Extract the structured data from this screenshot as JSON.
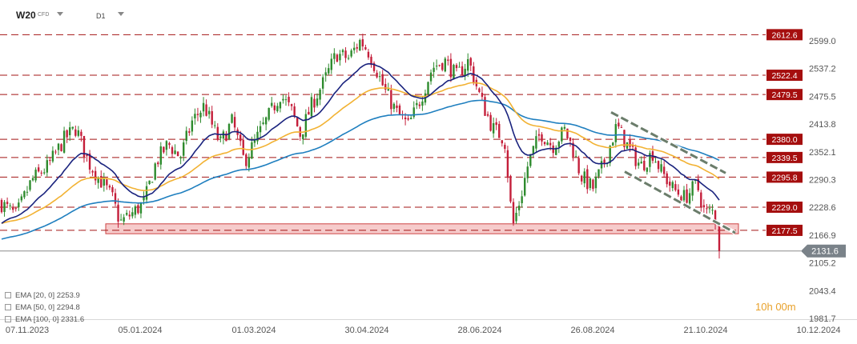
{
  "header": {
    "symbol": "W20",
    "symbol_type": "CFD",
    "interval": "D1"
  },
  "timer": {
    "hours": "10",
    "h_unit": "h",
    "minutes": "00",
    "m_unit": "m"
  },
  "legend": [
    {
      "label": "EMA [20, 0]",
      "value": "2253.9"
    },
    {
      "label": "EMA [50, 0]",
      "value": "2294.8"
    },
    {
      "label": "EMA [100, 0]",
      "value": "2331.6"
    }
  ],
  "colors": {
    "candle_up": "#2e8b2e",
    "candle_down": "#c41e3a",
    "ema20": "#1a237e",
    "ema50": "#f2b233",
    "ema100": "#1f7fbf",
    "level_line": "#a31515",
    "level_label_bg": "#a50e0e",
    "zone_fill": "#f6c6c6",
    "zone_stroke": "#c83030",
    "channel": "#6b7d6b",
    "price_tag": "#7a8289"
  },
  "chart_data": {
    "type": "candlestick",
    "instrument": "W20",
    "timeframe": "D1",
    "y_axis_ticks": [
      2599.0,
      2537.2,
      2475.5,
      2413.8,
      2352.1,
      2290.3,
      2228.6,
      2166.9,
      2105.2,
      2043.4,
      1981.7
    ],
    "ylim": [
      1970,
      2640
    ],
    "x_axis_ticks": [
      "07.11.2023",
      "05.01.2024",
      "01.03.2024",
      "30.04.2024",
      "28.06.2024",
      "26.08.2024",
      "21.10.2024",
      "10.12.2024"
    ],
    "horizontal_levels": [
      2612.6,
      2522.4,
      2479.5,
      2380.0,
      2339.5,
      2295.8,
      2229.0,
      2177.5
    ],
    "last_price": 2131.6,
    "support_zone": [
      2170,
      2192
    ],
    "downtrend_channel": {
      "upper": [
        2440,
        2305
      ],
      "lower": [
        2308,
        2172
      ]
    },
    "ema_series": [
      {
        "name": "EMA [20, 0]",
        "last": 2253.9
      },
      {
        "name": "EMA [50, 0]",
        "last": 2294.8
      },
      {
        "name": "EMA [100, 0]",
        "last": 2331.6
      }
    ],
    "close_path": [
      [
        0,
        2240
      ],
      [
        20,
        2210
      ],
      [
        40,
        2290
      ],
      [
        60,
        2320
      ],
      [
        80,
        2380
      ],
      [
        95,
        2405
      ],
      [
        110,
        2330
      ],
      [
        125,
        2290
      ],
      [
        140,
        2250
      ],
      [
        150,
        2195
      ],
      [
        165,
        2215
      ],
      [
        180,
        2240
      ],
      [
        195,
        2330
      ],
      [
        210,
        2370
      ],
      [
        225,
        2340
      ],
      [
        240,
        2420
      ],
      [
        255,
        2455
      ],
      [
        265,
        2410
      ],
      [
        275,
        2370
      ],
      [
        290,
        2420
      ],
      [
        305,
        2330
      ],
      [
        320,
        2380
      ],
      [
        335,
        2430
      ],
      [
        350,
        2480
      ],
      [
        365,
        2440
      ],
      [
        375,
        2390
      ],
      [
        390,
        2460
      ],
      [
        405,
        2510
      ],
      [
        420,
        2570
      ],
      [
        435,
        2560
      ],
      [
        450,
        2600
      ],
      [
        460,
        2575
      ],
      [
        470,
        2535
      ],
      [
        480,
        2490
      ],
      [
        495,
        2440
      ],
      [
        510,
        2410
      ],
      [
        525,
        2470
      ],
      [
        540,
        2540
      ],
      [
        555,
        2555
      ],
      [
        570,
        2520
      ],
      [
        585,
        2555
      ],
      [
        600,
        2470
      ],
      [
        615,
        2405
      ],
      [
        630,
        2380
      ],
      [
        640,
        2185
      ],
      [
        650,
        2250
      ],
      [
        660,
        2330
      ],
      [
        675,
        2395
      ],
      [
        690,
        2365
      ],
      [
        705,
        2400
      ],
      [
        715,
        2360
      ],
      [
        725,
        2300
      ],
      [
        740,
        2270
      ],
      [
        755,
        2330
      ],
      [
        770,
        2410
      ],
      [
        785,
        2360
      ],
      [
        800,
        2320
      ],
      [
        815,
        2350
      ],
      [
        825,
        2310
      ],
      [
        840,
        2270
      ],
      [
        855,
        2250
      ],
      [
        870,
        2280
      ],
      [
        880,
        2215
      ],
      [
        890,
        2220
      ],
      [
        896,
        2185
      ],
      [
        898,
        2131.6
      ]
    ]
  }
}
